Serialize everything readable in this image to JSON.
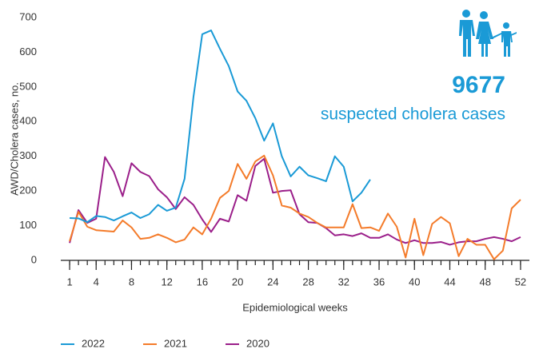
{
  "chart_data": {
    "type": "line",
    "x_label": "Epidemiological weeks",
    "y_label": "AWD/Cholera cases, no.",
    "annotation_number": "9677",
    "annotation_text": "suspected cholera cases",
    "x": [
      1,
      2,
      3,
      4,
      5,
      6,
      7,
      8,
      9,
      10,
      11,
      12,
      13,
      14,
      15,
      16,
      17,
      18,
      19,
      20,
      21,
      22,
      23,
      24,
      25,
      26,
      27,
      28,
      29,
      30,
      31,
      32,
      33,
      34,
      35,
      36,
      37,
      38,
      39,
      40,
      41,
      42,
      43,
      44,
      45,
      46,
      47,
      48,
      49,
      50,
      51,
      52
    ],
    "xlim": [
      0,
      53
    ],
    "xticks": [
      1,
      4,
      8,
      12,
      16,
      20,
      24,
      28,
      32,
      36,
      40,
      44,
      48,
      52
    ],
    "ylim": [
      0,
      700
    ],
    "yticks": [
      0,
      100,
      200,
      300,
      400,
      500,
      600,
      700
    ],
    "grid": false,
    "series": [
      {
        "name": "2022",
        "color": "#1a9ad6",
        "values": [
          122,
          121,
          110,
          128,
          125,
          115,
          127,
          138,
          122,
          133,
          160,
          143,
          152,
          235,
          470,
          652,
          663,
          610,
          560,
          487,
          460,
          410,
          345,
          395,
          300,
          242,
          270,
          245,
          237,
          228,
          300,
          270,
          170,
          195,
          233,
          null,
          null,
          null,
          null,
          null,
          null,
          null,
          null,
          null,
          null,
          null,
          null,
          null,
          null,
          null,
          null,
          null
        ]
      },
      {
        "name": "2021",
        "color": "#f47b2a",
        "values": [
          55,
          140,
          97,
          87,
          85,
          83,
          115,
          95,
          62,
          65,
          75,
          65,
          52,
          60,
          95,
          75,
          120,
          180,
          200,
          278,
          235,
          285,
          302,
          245,
          158,
          152,
          135,
          125,
          108,
          95,
          95,
          95,
          162,
          93,
          95,
          85,
          135,
          97,
          8,
          120,
          15,
          105,
          125,
          107,
          12,
          62,
          45,
          45,
          3,
          28,
          150,
          175
        ]
      },
      {
        "name": "2020",
        "color": "#9b1f8a",
        "values": [
          50,
          145,
          108,
          120,
          298,
          255,
          185,
          280,
          255,
          243,
          205,
          182,
          148,
          182,
          160,
          118,
          82,
          120,
          112,
          188,
          172,
          272,
          293,
          195,
          200,
          202,
          133,
          110,
          108,
          93,
          72,
          75,
          70,
          78,
          65,
          65,
          75,
          60,
          50,
          58,
          50,
          50,
          53,
          45,
          52,
          55,
          55,
          62,
          67,
          62,
          55,
          67
        ]
      }
    ]
  }
}
